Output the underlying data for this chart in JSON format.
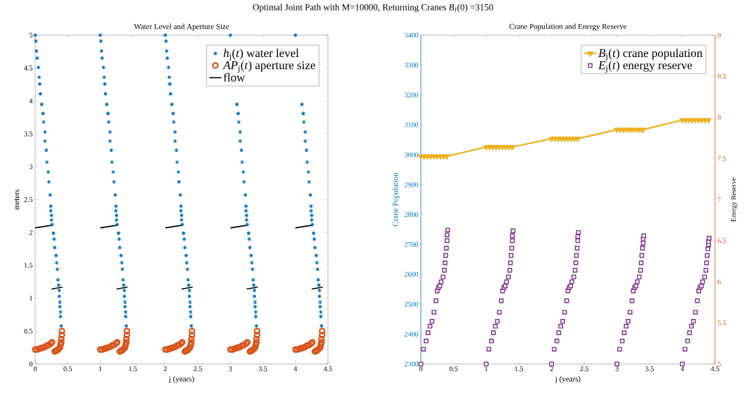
{
  "chart_data": [
    {
      "type": "scatter",
      "title": "Water Level and Aperture Size",
      "xlabel": "j (years)",
      "ylabel": "meters",
      "annotations": [
        "Optimal Joint Path with M=10000, Returning Cranes *B*$_{J}$(0) =3150"
      ],
      "xlim": [
        0,
        4.5
      ],
      "ylim": [
        0,
        5
      ],
      "xticks": [
        0,
        0.5,
        1,
        1.5,
        2,
        2.5,
        3,
        3.5,
        4,
        4.5
      ],
      "yticks": [
        0,
        0.5,
        1,
        1.5,
        2,
        2.5,
        3,
        3.5,
        4,
        4.5,
        5
      ],
      "legend": "top right",
      "series": [
        {
          "name": "*h*$_{j}$(*t*) water level",
          "marker": "cross",
          "color": "#0072bd",
          "x": [
            0,
            0.01,
            0.02,
            0.03,
            0.05,
            0.06,
            0.07,
            0.08,
            0.1,
            0.12,
            0.13,
            0.15,
            0.15,
            0.17,
            0.18,
            0.2,
            0.21,
            0.23,
            0.24,
            0.24,
            0.25,
            0.25,
            0.26,
            0.28,
            0.29,
            0.3,
            0.32,
            0.33,
            0.34,
            0.35,
            0.36,
            0.37,
            0.37,
            0.38,
            0.38,
            0.39,
            0.39,
            0.4,
            1,
            1.01,
            1.02,
            1.03,
            1.05,
            1.06,
            1.07,
            1.08,
            1.1,
            1.12,
            1.13,
            1.15,
            1.15,
            1.17,
            1.18,
            1.2,
            1.21,
            1.23,
            1.24,
            1.24,
            1.25,
            1.25,
            1.26,
            1.28,
            1.29,
            1.3,
            1.32,
            1.33,
            1.34,
            1.35,
            1.36,
            1.37,
            1.37,
            1.38,
            1.38,
            1.39,
            1.39,
            1.4,
            2,
            2.01,
            2.02,
            2.03,
            2.05,
            2.06,
            2.07,
            2.08,
            2.1,
            2.12,
            2.13,
            2.15,
            2.15,
            2.17,
            2.18,
            2.2,
            2.21,
            2.23,
            2.24,
            2.24,
            2.25,
            2.25,
            2.26,
            2.28,
            2.29,
            2.3,
            2.32,
            2.33,
            2.34,
            2.35,
            2.36,
            2.37,
            2.37,
            2.38,
            2.38,
            2.39,
            2.39,
            2.4,
            3,
            3.01,
            3.02,
            3.03,
            3.05,
            3.06,
            3.07,
            3.08,
            3.1,
            3.12,
            3.13,
            3.15,
            3.15,
            3.17,
            3.18,
            3.2,
            3.21,
            3.23,
            3.24,
            3.24,
            3.25,
            3.25,
            3.26,
            3.28,
            3.29,
            3.3,
            3.32,
            3.33,
            3.34,
            3.35,
            3.36,
            3.37,
            3.37,
            3.38,
            3.38,
            3.39,
            3.39,
            3.4,
            4,
            4.01,
            4.02,
            4.03,
            4.05,
            4.06,
            4.07,
            4.08,
            4.1,
            4.12,
            4.13,
            4.15,
            4.15,
            4.17,
            4.18,
            4.2,
            4.21,
            4.23,
            4.24,
            4.24,
            4.25,
            4.25,
            4.26,
            4.28,
            4.29,
            4.3,
            4.32,
            4.33,
            4.34,
            4.35,
            4.36,
            4.37,
            4.37,
            4.38,
            4.38,
            4.39,
            4.39,
            4.4
          ],
          "values": [
            5,
            4.91,
            4.76,
            4.65,
            4.51,
            4.36,
            4.26,
            4.11,
            3.95,
            3.81,
            3.68,
            3.53,
            3.39,
            3.25,
            3.07,
            2.92,
            2.77,
            2.57,
            2.4,
            2.33,
            2.26,
            2.19,
            2.12,
            1.99,
            1.9,
            1.77,
            1.65,
            1.54,
            1.44,
            1.28,
            1.2,
            1.12,
            1.03,
            0.94,
            0.87,
            0.79,
            0.72,
            0.58,
            5,
            4.91,
            4.76,
            4.65,
            4.51,
            4.36,
            4.26,
            4.11,
            3.95,
            3.81,
            3.68,
            3.53,
            3.39,
            3.25,
            3.07,
            2.92,
            2.77,
            2.57,
            2.4,
            2.33,
            2.26,
            2.19,
            2.12,
            1.99,
            1.9,
            1.77,
            1.65,
            1.54,
            1.44,
            1.28,
            1.2,
            1.12,
            1.03,
            0.94,
            0.87,
            0.79,
            0.72,
            0.58,
            5,
            4.91,
            4.76,
            4.65,
            4.51,
            4.36,
            4.26,
            4.11,
            3.95,
            3.81,
            3.68,
            3.53,
            3.39,
            3.25,
            3.07,
            2.92,
            2.77,
            2.57,
            2.4,
            2.33,
            2.26,
            2.19,
            2.12,
            1.99,
            1.9,
            1.77,
            1.65,
            1.54,
            1.44,
            1.28,
            1.2,
            1.12,
            1.03,
            0.94,
            0.87,
            0.79,
            0.72,
            0.58,
            5,
            null,
            null,
            null,
            null,
            null,
            null,
            null,
            3.95,
            3.81,
            3.68,
            3.53,
            3.39,
            3.25,
            3.07,
            2.92,
            2.77,
            2.57,
            2.4,
            2.33,
            2.26,
            2.19,
            2.12,
            1.99,
            1.9,
            1.77,
            1.65,
            1.54,
            1.44,
            1.28,
            1.2,
            1.12,
            1.03,
            0.94,
            0.87,
            0.79,
            0.72,
            0.58,
            5,
            null,
            null,
            null,
            null,
            null,
            null,
            null,
            3.95,
            3.81,
            3.68,
            3.53,
            3.39,
            3.25,
            3.07,
            2.92,
            2.77,
            2.57,
            2.4,
            2.33,
            2.26,
            2.19,
            2.12,
            1.99,
            1.9,
            1.77,
            1.65,
            1.54,
            1.44,
            1.28,
            1.2,
            1.12,
            1.03,
            0.94,
            0.87,
            0.79,
            0.72,
            0.58
          ]
        },
        {
          "name": "*AP*$_{j}$(*t*) aperture size",
          "marker": "circle",
          "color": "#d95319",
          "x": [
            0,
            0.03,
            0.06,
            0.09,
            0.12,
            0.15,
            0.18,
            0.21,
            0.24,
            0.26,
            0.3,
            0.32,
            0.34,
            0.36,
            0.38,
            0.39,
            0.4,
            0.4,
            0.41,
            0.41,
            1,
            1.03,
            1.06,
            1.09,
            1.12,
            1.15,
            1.18,
            1.21,
            1.24,
            1.26,
            1.3,
            1.32,
            1.34,
            1.36,
            1.38,
            1.39,
            1.4,
            1.4,
            1.41,
            1.41,
            2,
            2.03,
            2.06,
            2.09,
            2.12,
            2.15,
            2.18,
            2.21,
            2.24,
            2.26,
            2.3,
            2.32,
            2.34,
            2.36,
            2.38,
            2.39,
            2.4,
            2.4,
            2.41,
            2.41,
            3,
            3.03,
            3.06,
            3.09,
            3.12,
            3.15,
            3.18,
            3.21,
            3.24,
            3.26,
            3.3,
            3.32,
            3.34,
            3.36,
            3.38,
            3.39,
            3.4,
            3.4,
            3.41,
            3.41,
            4,
            4.03,
            4.06,
            4.09,
            4.12,
            4.15,
            4.18,
            4.21,
            4.24,
            4.26,
            4.3,
            4.32,
            4.34,
            4.36,
            4.38,
            4.39,
            4.4,
            4.4,
            4.41,
            4.41
          ],
          "values": [
            0.22,
            0.22,
            0.23,
            0.24,
            0.25,
            0.26,
            0.28,
            0.29,
            0.31,
            0.33,
            0.19,
            0.2,
            0.21,
            0.23,
            0.25,
            0.29,
            0.33,
            0.38,
            0.44,
            0.5,
            0.22,
            0.22,
            0.23,
            0.24,
            0.25,
            0.26,
            0.28,
            0.29,
            0.31,
            0.33,
            0.19,
            0.2,
            0.21,
            0.23,
            0.25,
            0.29,
            0.33,
            0.38,
            0.44,
            0.5,
            0.22,
            0.22,
            0.23,
            0.24,
            0.25,
            0.26,
            0.28,
            0.29,
            0.31,
            0.33,
            0.19,
            0.2,
            0.21,
            0.23,
            0.25,
            0.29,
            0.33,
            0.38,
            0.44,
            0.5,
            0.22,
            0.22,
            0.23,
            0.24,
            0.25,
            0.26,
            0.28,
            0.29,
            0.31,
            0.33,
            0.19,
            0.2,
            0.21,
            0.23,
            0.25,
            0.29,
            0.33,
            0.38,
            0.44,
            0.5,
            0.22,
            0.22,
            0.23,
            0.24,
            0.25,
            0.26,
            0.28,
            0.29,
            0.31,
            0.33,
            0.19,
            0.2,
            0.21,
            0.23,
            0.25,
            0.29,
            0.33,
            0.38,
            0.44,
            0.5
          ]
        },
        {
          "name": "flow",
          "type": "line",
          "marker": "none",
          "color": "#000000",
          "x": [
            0,
            0.26,
            null,
            0.25,
            0.42,
            null,
            1,
            1.26,
            null,
            1.25,
            1.42,
            null,
            2,
            2.26,
            null,
            2.25,
            2.42,
            null,
            3,
            3.26,
            null,
            3.25,
            3.42,
            null,
            4,
            4.26,
            null,
            4.25,
            4.42
          ],
          "values": [
            2.07,
            2.11,
            null,
            1.14,
            1.17,
            null,
            2.07,
            2.11,
            null,
            1.14,
            1.17,
            null,
            2.07,
            2.11,
            null,
            1.14,
            1.17,
            null,
            2.07,
            2.11,
            null,
            1.14,
            1.17,
            null,
            2.07,
            2.11,
            null,
            1.14,
            1.17
          ]
        }
      ]
    },
    {
      "type": "line",
      "title": "Crane Population and Energy Reserve",
      "xlabel": "j (years)",
      "ylabel": "Crane Population",
      "y2label": "Energy Reserve",
      "xlim": [
        0,
        4.5
      ],
      "ylim": [
        2300,
        3400
      ],
      "y2lim": [
        5,
        9
      ],
      "xticks": [
        0,
        0.5,
        1,
        1.5,
        2,
        2.5,
        3,
        3.5,
        4,
        4.5
      ],
      "yticks": [
        2300,
        2400,
        2500,
        2600,
        2700,
        2800,
        2900,
        3000,
        3100,
        3200,
        3300,
        3400
      ],
      "y2ticks": [
        5,
        5.5,
        6,
        6.5,
        7,
        7.5,
        8,
        8.5,
        9
      ],
      "legend": "top right",
      "series": [
        {
          "name": "*B*$_{j}$(*t*) crane population",
          "marker": "triangle",
          "axis": "y",
          "color": "#edb120",
          "x": [
            0,
            0.05,
            0.1,
            0.15,
            0.2,
            0.25,
            0.3,
            0.35,
            0.4,
            1,
            1.05,
            1.1,
            1.15,
            1.2,
            1.25,
            1.3,
            1.35,
            1.4,
            2,
            2.05,
            2.1,
            2.15,
            2.2,
            2.25,
            2.3,
            2.35,
            2.4,
            3,
            3.05,
            3.1,
            3.15,
            3.2,
            3.25,
            3.3,
            3.35,
            3.4,
            4,
            4.05,
            4.1,
            4.15,
            4.2,
            4.25,
            4.3,
            4.35,
            4.4
          ],
          "values": [
            2995,
            2995,
            2995,
            2995,
            2995,
            2995,
            2995,
            2995,
            2995,
            3026,
            3026,
            3026,
            3026,
            3026,
            3026,
            3026,
            3026,
            3026,
            3054,
            3054,
            3054,
            3054,
            3054,
            3054,
            3054,
            3054,
            3054,
            3084,
            3084,
            3084,
            3084,
            3084,
            3084,
            3084,
            3084,
            3084,
            3116,
            3116,
            3116,
            3116,
            3116,
            3116,
            3116,
            3116,
            3116
          ]
        },
        {
          "name": "*E*$_{j}$(*t*) energy reserve",
          "type": "scatter",
          "marker": "square",
          "axis": "y2",
          "color": "#7e2f8e",
          "x": [
            0,
            0.04,
            0.08,
            0.11,
            0.14,
            0.17,
            0.2,
            0.23,
            0.25,
            0.27,
            0.29,
            0.31,
            0.34,
            0.36,
            0.37,
            0.38,
            0.39,
            0.4,
            0.4,
            0.41,
            1,
            1.04,
            1.08,
            1.11,
            1.14,
            1.17,
            1.2,
            1.23,
            1.25,
            1.27,
            1.29,
            1.31,
            1.34,
            1.36,
            1.37,
            1.38,
            1.39,
            1.4,
            1.4,
            1.41,
            2,
            2.04,
            2.08,
            2.11,
            2.14,
            2.17,
            2.2,
            2.23,
            2.25,
            2.27,
            2.29,
            2.31,
            2.34,
            2.36,
            2.37,
            2.38,
            2.39,
            2.4,
            2.4,
            2.41,
            3,
            3.04,
            3.08,
            3.11,
            3.14,
            3.17,
            3.2,
            3.23,
            3.25,
            3.27,
            3.29,
            3.31,
            3.34,
            3.36,
            3.37,
            3.38,
            3.39,
            3.4,
            3.4,
            3.41,
            4,
            4.04,
            4.08,
            4.11,
            4.14,
            4.17,
            4.2,
            4.23,
            4.25,
            4.27,
            4.29,
            4.31,
            4.34,
            4.36,
            4.37,
            4.38,
            4.39,
            4.4,
            4.4,
            4.41
          ],
          "values": [
            5,
            5.18,
            5.28,
            5.38,
            5.46,
            5.52,
            5.63,
            5.77,
            5.89,
            5.93,
            5.95,
            6,
            6.06,
            6.14,
            6.23,
            6.32,
            6.41,
            6.5,
            6.57,
            6.63,
            5,
            5.18,
            5.28,
            5.38,
            5.46,
            5.52,
            5.63,
            5.77,
            5.89,
            5.93,
            5.95,
            6,
            6.06,
            6.14,
            6.23,
            6.32,
            6.41,
            6.5,
            6.56,
            6.62,
            5,
            5.18,
            5.28,
            5.38,
            5.46,
            5.52,
            5.63,
            5.77,
            5.89,
            5.93,
            5.95,
            6,
            6.06,
            6.14,
            6.23,
            6.32,
            6.41,
            6.5,
            6.55,
            6.6,
            5,
            5.18,
            5.28,
            5.38,
            5.46,
            5.52,
            5.63,
            5.77,
            5.89,
            5.93,
            5.95,
            6,
            6.06,
            6.14,
            6.23,
            6.32,
            6.41,
            6.47,
            6.52,
            6.56,
            5,
            5.18,
            5.28,
            5.38,
            5.46,
            5.52,
            5.63,
            5.77,
            5.89,
            5.93,
            5.95,
            6,
            6.06,
            6.14,
            6.23,
            6.32,
            6.4,
            6.45,
            6.49,
            6.53
          ]
        }
      ]
    }
  ]
}
